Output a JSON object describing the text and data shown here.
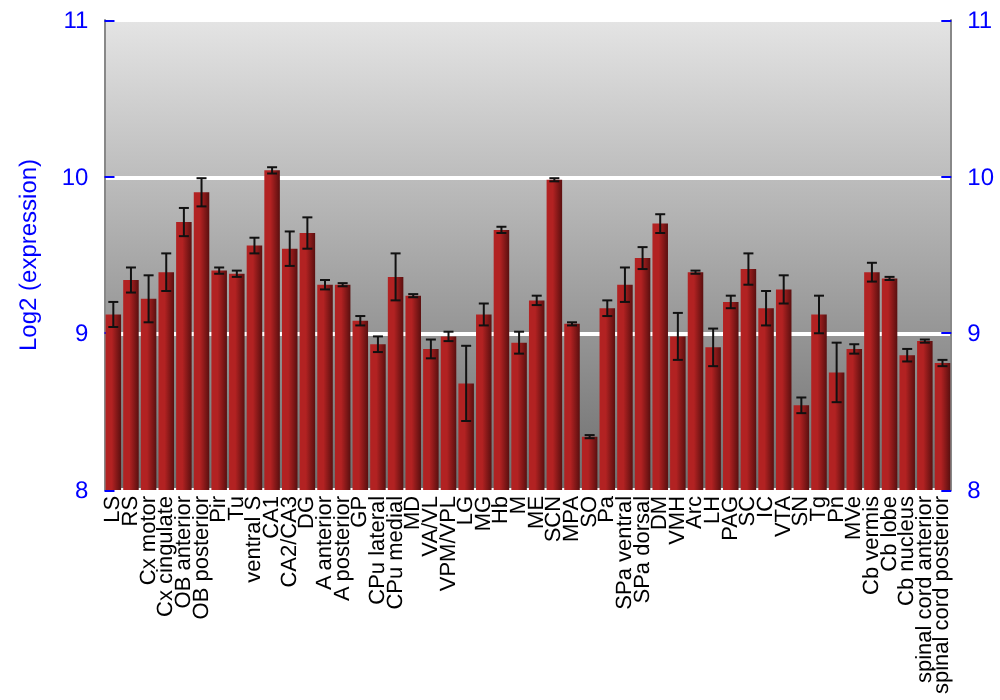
{
  "chart_data": {
    "type": "bar",
    "ylabel": "Log2 (expression)",
    "categories": [
      "LS",
      "RS",
      "Cx motor",
      "Cx cingulate",
      "OB anterior",
      "OB posterior",
      "Pir",
      "Tu",
      "ventral S",
      "CA1",
      "CA2/CA3",
      "DG",
      "A anterior",
      "A posterior",
      "GP",
      "CPu lateral",
      "CPu medial",
      "MD",
      "VA/VL",
      "VPM/VPL",
      "LG",
      "MG",
      "Hb",
      "M",
      "ME",
      "SCN",
      "MPA",
      "SO",
      "Pa",
      "SPa ventral",
      "SPa dorsal",
      "DM",
      "VMH",
      "Arc",
      "LH",
      "PAG",
      "SC",
      "IC",
      "VTA",
      "SN",
      "Tg",
      "Pn",
      "MVe",
      "Cb vermis",
      "Cb lobe",
      "Cb nucleus",
      "spinal cord anterior",
      "spinal cord posterior"
    ],
    "values": [
      9.12,
      9.34,
      9.22,
      9.39,
      9.71,
      9.9,
      9.4,
      9.38,
      9.56,
      10.04,
      9.54,
      9.64,
      9.31,
      9.31,
      9.08,
      8.93,
      9.36,
      9.24,
      8.9,
      8.98,
      8.68,
      9.12,
      9.66,
      8.94,
      9.21,
      9.98,
      9.06,
      8.34,
      9.16,
      9.31,
      9.48,
      9.7,
      8.98,
      9.39,
      8.91,
      9.2,
      9.41,
      9.16,
      9.28,
      8.54,
      9.12,
      8.75,
      8.9,
      9.39,
      9.35,
      8.86,
      8.95,
      8.81
    ],
    "errors": [
      0.08,
      0.08,
      0.15,
      0.12,
      0.09,
      0.09,
      0.02,
      0.02,
      0.05,
      0.02,
      0.11,
      0.1,
      0.03,
      0.01,
      0.03,
      0.05,
      0.15,
      0.01,
      0.06,
      0.03,
      0.24,
      0.07,
      0.02,
      0.07,
      0.03,
      0.01,
      0.01,
      0.01,
      0.05,
      0.11,
      0.07,
      0.06,
      0.15,
      0.01,
      0.12,
      0.04,
      0.1,
      0.11,
      0.09,
      0.05,
      0.12,
      0.19,
      0.03,
      0.06,
      0.01,
      0.04,
      0.01,
      0.02
    ],
    "color": "#b22222",
    "ylim": [
      8,
      11
    ],
    "yticks": [
      8,
      9,
      10,
      11
    ],
    "y2lim": [
      8,
      11
    ],
    "y2ticks": [
      8,
      9,
      10,
      11
    ],
    "grid": "y"
  }
}
